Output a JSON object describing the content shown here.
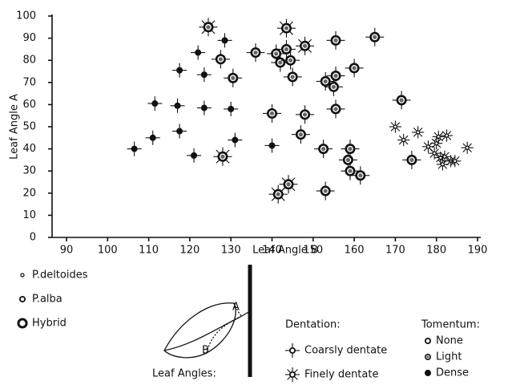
{
  "chart_data": {
    "type": "scatter",
    "xlabel": "Leaf Angle B",
    "ylabel": "Leaf Angle A",
    "xlim": [
      90,
      190
    ],
    "ylim": [
      0,
      100
    ],
    "xticks": [
      90,
      100,
      110,
      120,
      130,
      140,
      150,
      160,
      170,
      180,
      190
    ],
    "yticks": [
      0,
      10,
      20,
      30,
      40,
      50,
      60,
      70,
      80,
      90,
      100
    ],
    "series": [
      {
        "species": "P.alba",
        "dentation": "Coarsly dentate",
        "tomentum": "Dense",
        "x": [
          106.5,
          111,
          111.5,
          117,
          117.5,
          117.5,
          121,
          122,
          123.5,
          123.5,
          128.5,
          130,
          131,
          140
        ],
        "y": [
          40,
          45,
          60.5,
          59.5,
          48,
          75.5,
          37,
          83.5,
          58.5,
          73.5,
          89,
          58,
          44,
          41.5
        ]
      },
      {
        "species": "Hybrid",
        "dentation": "Coarsly dentate",
        "tomentum": "Light",
        "x": [
          127.5,
          130.5,
          136,
          140,
          141,
          142,
          143.5,
          144.5,
          145,
          147,
          148,
          152.5,
          153,
          153,
          155,
          155.5,
          155.5,
          158.5,
          159,
          159,
          160,
          161.5,
          171.5,
          174,
          155.5,
          165
        ],
        "y": [
          80.5,
          72,
          83.5,
          56,
          83,
          79,
          85,
          80,
          72.5,
          46.5,
          55.5,
          40,
          70.5,
          21,
          68,
          73,
          58,
          35,
          40,
          30,
          76.5,
          28,
          62,
          35,
          89,
          90.5
        ]
      },
      {
        "species": "Hybrid",
        "dentation": "Finely dentate",
        "tomentum": "Light",
        "x": [
          124.5,
          128,
          141.5,
          143.5,
          144,
          148
        ],
        "y": [
          95,
          36.5,
          19.5,
          94.5,
          24,
          86.5
        ]
      },
      {
        "species": "P.deltoides",
        "dentation": "Finely dentate",
        "tomentum": "None",
        "x": [
          170,
          172,
          175.5,
          178,
          179.5,
          180,
          180.5,
          181,
          181.5,
          182,
          182.5,
          183.5,
          184.5,
          187.5
        ],
        "y": [
          50,
          44,
          47.5,
          41,
          38,
          42.5,
          45.5,
          36,
          33,
          36.5,
          46,
          34.5,
          34.5,
          40.5
        ]
      }
    ]
  },
  "legend": {
    "species": [
      "P.deltoides",
      "P.alba",
      "Hybrid"
    ],
    "diagram": {
      "title": "Leaf Angles:",
      "a": "A",
      "b": "B"
    },
    "dentation": {
      "title": "Dentation:",
      "items": [
        "Coarsly dentate",
        "Finely dentate"
      ]
    },
    "tomentum": {
      "title": "Tomentum:",
      "items": [
        "None",
        "Light",
        "Dense"
      ]
    }
  }
}
